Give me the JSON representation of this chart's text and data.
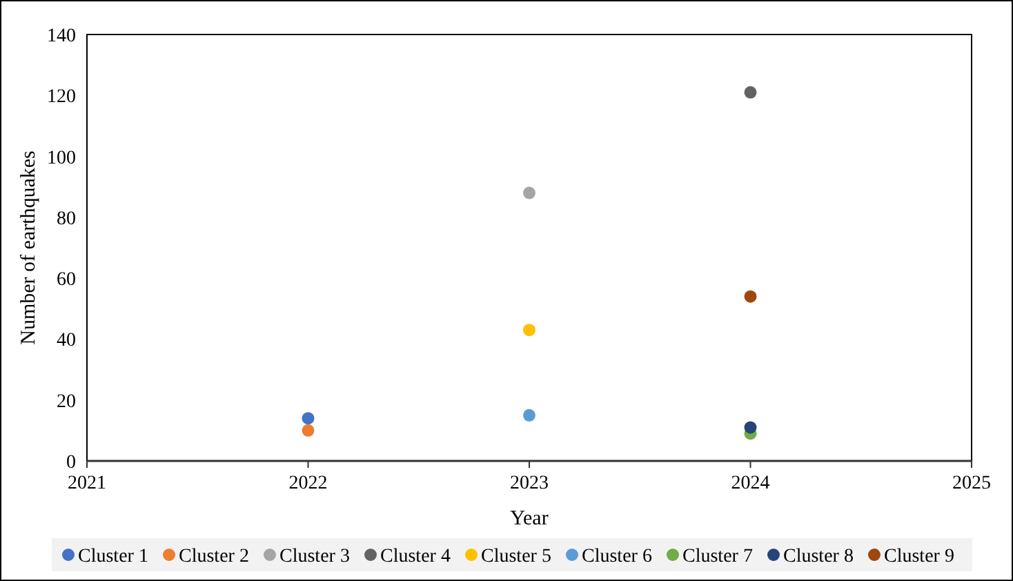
{
  "chart_data": {
    "type": "scatter",
    "xlabel": "Year",
    "ylabel": "Number of earthquakes",
    "xlim": [
      2021,
      2025
    ],
    "xticks": [
      2021,
      2022,
      2023,
      2024,
      2025
    ],
    "ylim": [
      0,
      140
    ],
    "yticks": [
      0,
      20,
      40,
      60,
      80,
      100,
      120,
      140
    ],
    "grid": false,
    "legend": "bottom",
    "marker": "circle",
    "series": [
      {
        "name": "Cluster 1",
        "color": "#4472c4",
        "x": [
          2022
        ],
        "values": [
          14
        ]
      },
      {
        "name": "Cluster 2",
        "color": "#ed7d31",
        "x": [
          2022
        ],
        "values": [
          10
        ]
      },
      {
        "name": "Cluster 3",
        "color": "#a5a5a5",
        "x": [
          2023
        ],
        "values": [
          88
        ]
      },
      {
        "name": "Cluster 4",
        "color": "#636363",
        "x": [
          2024
        ],
        "values": [
          121
        ]
      },
      {
        "name": "Cluster 5",
        "color": "#ffc000",
        "x": [
          2023
        ],
        "values": [
          43
        ]
      },
      {
        "name": "Cluster 6",
        "color": "#5b9bd5",
        "x": [
          2023
        ],
        "values": [
          15
        ]
      },
      {
        "name": "Cluster 7",
        "color": "#70ad47",
        "x": [
          2024
        ],
        "values": [
          9
        ]
      },
      {
        "name": "Cluster 8",
        "color": "#264478",
        "x": [
          2024
        ],
        "values": [
          11
        ]
      },
      {
        "name": "Cluster 9",
        "color": "#9e480e",
        "x": [
          2024
        ],
        "values": [
          54
        ]
      }
    ]
  }
}
